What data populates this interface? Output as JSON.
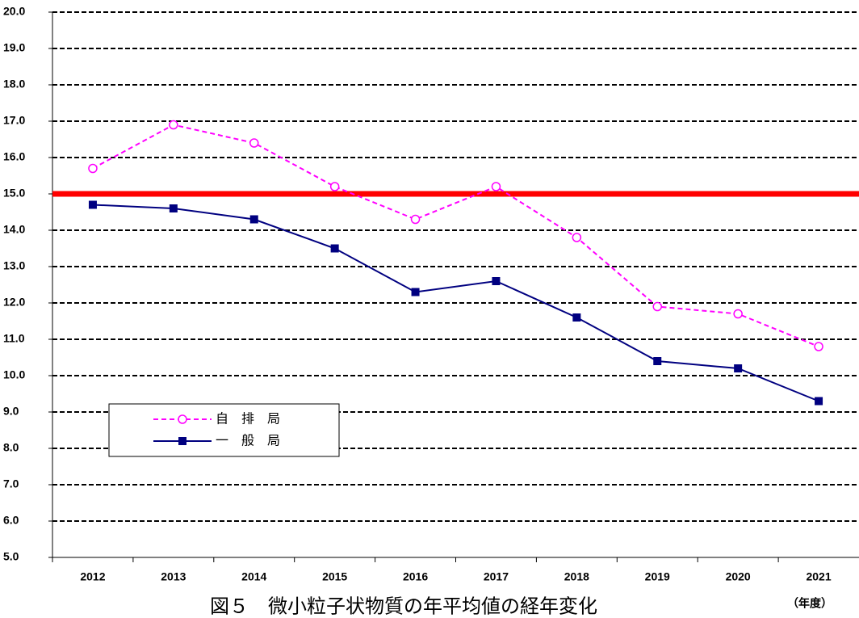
{
  "chart_data": {
    "type": "line",
    "title": "図５　微小粒子状物質の年平均値の経年変化",
    "x_label": "（年度）",
    "categories": [
      "2012",
      "2013",
      "2014",
      "2015",
      "2016",
      "2017",
      "2018",
      "2019",
      "2020",
      "2021"
    ],
    "series": [
      {
        "name": "自　排　局",
        "color": "#ff00ff",
        "style": "dashed",
        "marker": "open-circle",
        "values": [
          15.7,
          16.9,
          16.4,
          15.2,
          14.3,
          15.2,
          13.8,
          11.9,
          11.7,
          10.8
        ]
      },
      {
        "name": "一　般　局",
        "color": "#000080",
        "style": "solid",
        "marker": "filled-square",
        "values": [
          14.7,
          14.6,
          14.3,
          13.5,
          12.3,
          12.6,
          11.6,
          10.4,
          10.2,
          9.3
        ]
      }
    ],
    "reference_line": {
      "value": 15,
      "color": "#ff0000"
    },
    "ylim": [
      5,
      20
    ],
    "yticks": [
      {
        "value": 5,
        "label": "5.0"
      },
      {
        "value": 6,
        "label": "6.0"
      },
      {
        "value": 7,
        "label": "7.0"
      },
      {
        "value": 8,
        "label": "8.0"
      },
      {
        "value": 9,
        "label": "9.0"
      },
      {
        "value": 10,
        "label": "10.0"
      },
      {
        "value": 11,
        "label": "11.0"
      },
      {
        "value": 12,
        "label": "12.0"
      },
      {
        "value": 13,
        "label": "13.0"
      },
      {
        "value": 14,
        "label": "14.0"
      },
      {
        "value": 15,
        "label": "15.0"
      },
      {
        "value": 16,
        "label": "16.0"
      },
      {
        "value": 17,
        "label": "17.0"
      },
      {
        "value": 18,
        "label": "18.0"
      },
      {
        "value": 19,
        "label": "19.0"
      },
      {
        "value": 20,
        "label": "20.0"
      }
    ],
    "grid": true
  }
}
